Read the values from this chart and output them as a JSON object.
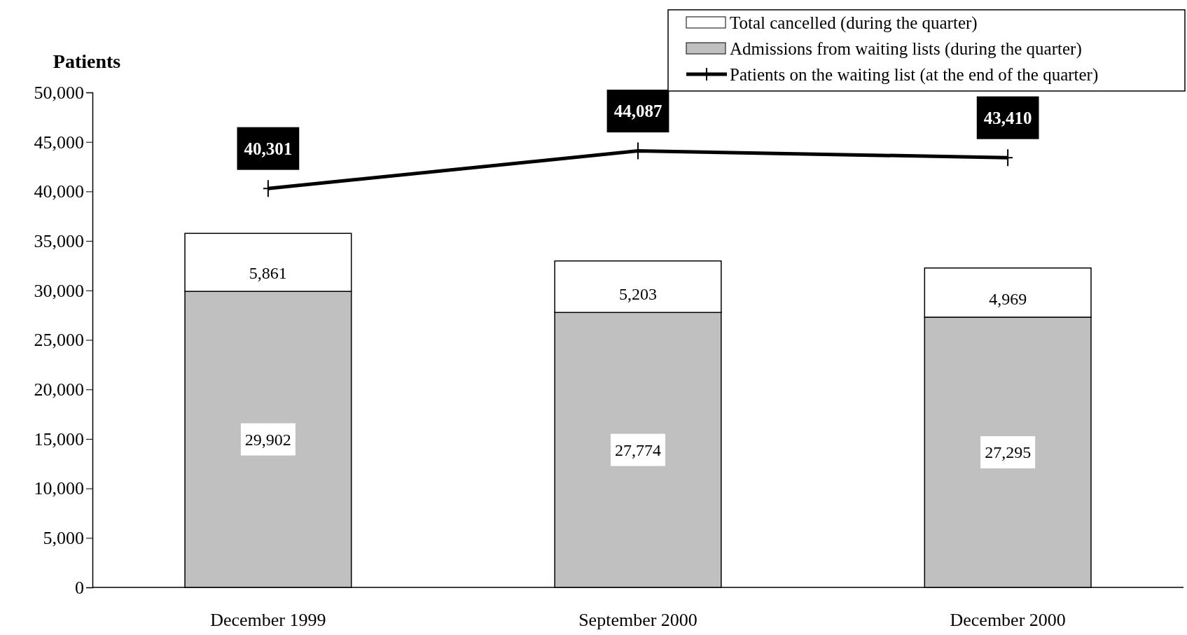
{
  "chart_data": {
    "type": "bar",
    "stacked": true,
    "ylabel": "Patients",
    "categories": [
      "December 1999",
      "September 2000",
      "December 2000"
    ],
    "series": [
      {
        "name": "Admissions from waiting lists (during the quarter)",
        "color": "#c0c0c0",
        "values": [
          29902,
          27774,
          27295
        ],
        "value_labels": [
          "29,902",
          "27,774",
          "27,295"
        ]
      },
      {
        "name": "Total cancelled (during the quarter)",
        "color": "#ffffff",
        "values": [
          5861,
          5203,
          4969
        ],
        "value_labels": [
          "5,861",
          "5,203",
          "4,969"
        ]
      },
      {
        "name": "Patients on the waiting list (at the end of the quarter)",
        "type": "line",
        "color": "#000000",
        "marker": "cross",
        "values": [
          40301,
          44087,
          43410
        ],
        "value_labels": [
          "40,301",
          "44,087",
          "43,410"
        ]
      }
    ],
    "ylim": [
      0,
      50000
    ],
    "yticks": [
      {
        "value": 0,
        "label": "0"
      },
      {
        "value": 5000,
        "label": "5,000"
      },
      {
        "value": 10000,
        "label": "10,000"
      },
      {
        "value": 15000,
        "label": "15,000"
      },
      {
        "value": 20000,
        "label": "20,000"
      },
      {
        "value": 25000,
        "label": "25,000"
      },
      {
        "value": 30000,
        "label": "30,000"
      },
      {
        "value": 35000,
        "label": "35,000"
      },
      {
        "value": 40000,
        "label": "40,000"
      },
      {
        "value": 45000,
        "label": "45,000"
      },
      {
        "value": 50000,
        "label": "50,000"
      }
    ],
    "grid": false,
    "legend": "top right"
  }
}
